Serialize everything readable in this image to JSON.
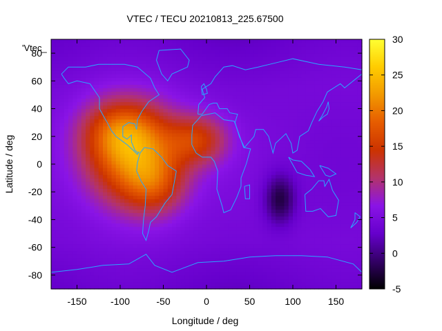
{
  "chart_data": {
    "type": "heatmap",
    "title": "VTEC / TECU 20210813_225.67500",
    "xlabel": "Longitude / deg",
    "ylabel": "Latitude / deg",
    "legend_label": "'Vtec_",
    "xlim": [
      -180,
      180
    ],
    "ylim": [
      -90,
      90
    ],
    "xticks": [
      -150,
      -100,
      -50,
      0,
      50,
      100,
      150
    ],
    "yticks": [
      -80,
      -60,
      -40,
      -20,
      0,
      20,
      40,
      60,
      80
    ],
    "colorbar": {
      "range": [
        -5,
        30
      ],
      "ticks": [
        -5,
        0,
        5,
        10,
        15,
        20,
        25,
        30
      ],
      "palette": [
        "#000000",
        "#330066",
        "#6600cc",
        "#8a14e6",
        "#b3336b",
        "#cc3300",
        "#e65c00",
        "#f29900",
        "#ffcc00",
        "#ffff33"
      ]
    },
    "grid": false,
    "overlay": "coastlines",
    "coastline_color": "#2aa7ff",
    "field_features": [
      {
        "region": "equatorial anomaly over the Americas",
        "lon_center": -80,
        "lat_center": 5,
        "vtec_peak": 29
      },
      {
        "region": "northern crest over North America",
        "lon_center": -100,
        "lat_center": 25,
        "vtec_peak": 27
      },
      {
        "region": "southern crest over South America",
        "lon_center": -60,
        "lat_center": -15,
        "vtec_peak": 25
      },
      {
        "region": "Atlantic / West Africa extension",
        "lon_center": -10,
        "lat_center": 18,
        "vtec_peak": 20
      },
      {
        "region": "Indian Ocean depletion",
        "lon_center": 85,
        "lat_center": -25,
        "vtec_peak": -2
      },
      {
        "region": "Pacific / Asia background",
        "lon_center": 120,
        "lat_center": 10,
        "vtec_peak": 5
      }
    ]
  }
}
